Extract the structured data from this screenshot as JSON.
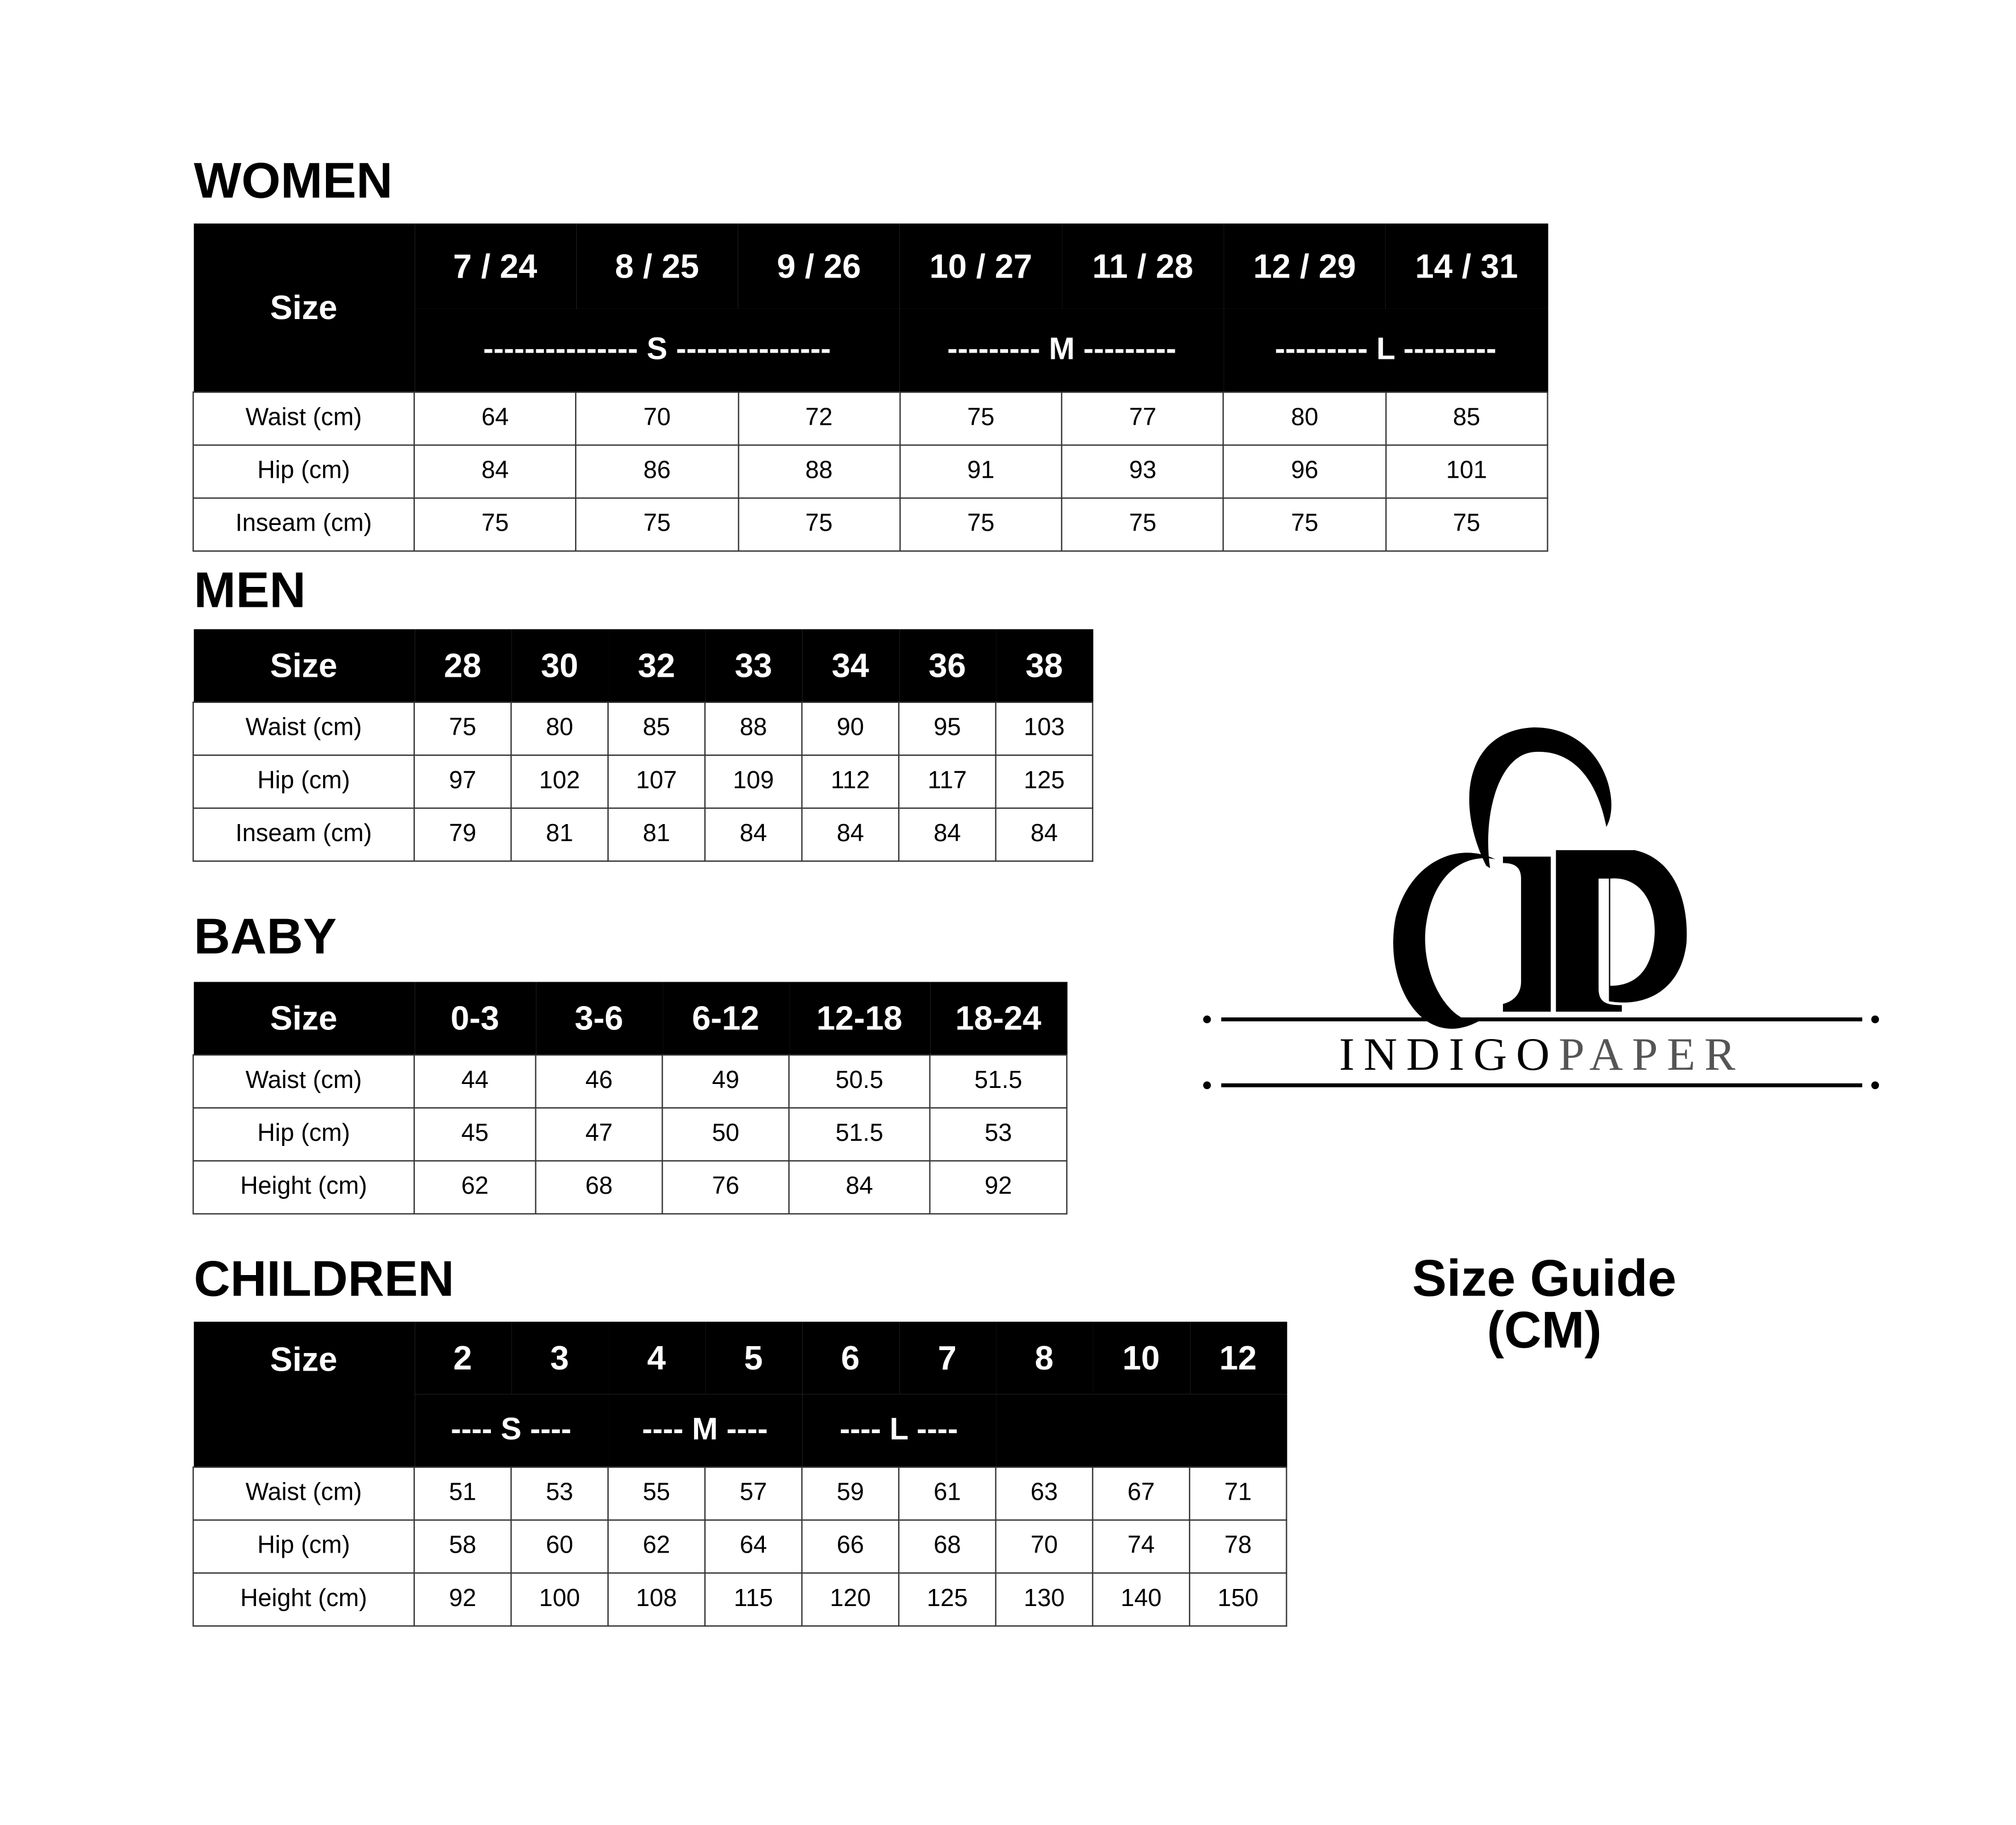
{
  "women": {
    "title": "WOMEN",
    "size_label": "Size",
    "sizes": [
      "7 / 24",
      "8 / 25",
      "9 / 26",
      "10 / 27",
      "11 / 28",
      "12 / 29",
      "14 / 31"
    ],
    "groups": [
      "--------------- S ---------------",
      "--------- M ---------",
      "--------- L ---------"
    ],
    "rows": [
      {
        "label": "Waist (cm)",
        "values": [
          "64",
          "70",
          "72",
          "75",
          "77",
          "80",
          "85"
        ]
      },
      {
        "label": "Hip (cm)",
        "values": [
          "84",
          "86",
          "88",
          "91",
          "93",
          "96",
          "101"
        ]
      },
      {
        "label": "Inseam (cm)",
        "values": [
          "75",
          "75",
          "75",
          "75",
          "75",
          "75",
          "75"
        ]
      }
    ]
  },
  "men": {
    "title": "MEN",
    "size_label": "Size",
    "sizes": [
      "28",
      "30",
      "32",
      "33",
      "34",
      "36",
      "38"
    ],
    "rows": [
      {
        "label": "Waist (cm)",
        "values": [
          "75",
          "80",
          "85",
          "88",
          "90",
          "95",
          "103"
        ]
      },
      {
        "label": "Hip (cm)",
        "values": [
          "97",
          "102",
          "107",
          "109",
          "112",
          "117",
          "125"
        ]
      },
      {
        "label": "Inseam (cm)",
        "values": [
          "79",
          "81",
          "81",
          "84",
          "84",
          "84",
          "84"
        ]
      }
    ]
  },
  "baby": {
    "title": "BABY",
    "size_label": "Size",
    "sizes": [
      "0-3",
      "3-6",
      "6-12",
      "12-18",
      "18-24"
    ],
    "rows": [
      {
        "label": "Waist (cm)",
        "values": [
          "44",
          "46",
          "49",
          "50.5",
          "51.5"
        ]
      },
      {
        "label": "Hip (cm)",
        "values": [
          "45",
          "47",
          "50",
          "51.5",
          "53"
        ]
      },
      {
        "label": "Height (cm)",
        "values": [
          "62",
          "68",
          "76",
          "84",
          "92"
        ]
      }
    ]
  },
  "children": {
    "title": "CHILDREN",
    "size_label": "Size",
    "sizes": [
      "2",
      "3",
      "4",
      "5",
      "6",
      "7",
      "8",
      "10",
      "12"
    ],
    "groups": [
      "---- S ----",
      "---- M ----",
      "---- L ----"
    ],
    "rows": [
      {
        "label": "Waist (cm)",
        "values": [
          "51",
          "53",
          "55",
          "57",
          "59",
          "61",
          "63",
          "67",
          "71"
        ]
      },
      {
        "label": "Hip (cm)",
        "values": [
          "58",
          "60",
          "62",
          "64",
          "66",
          "68",
          "70",
          "74",
          "78"
        ]
      },
      {
        "label": "Height (cm)",
        "values": [
          "92",
          "100",
          "108",
          "115",
          "120",
          "125",
          "130",
          "140",
          "150"
        ]
      }
    ]
  },
  "logo": {
    "text_dark": "INDIGO",
    "text_gray": "PAPER",
    "gray_color": "#555555"
  },
  "guide": {
    "line1": "Size Guide",
    "line2": "(CM)"
  }
}
